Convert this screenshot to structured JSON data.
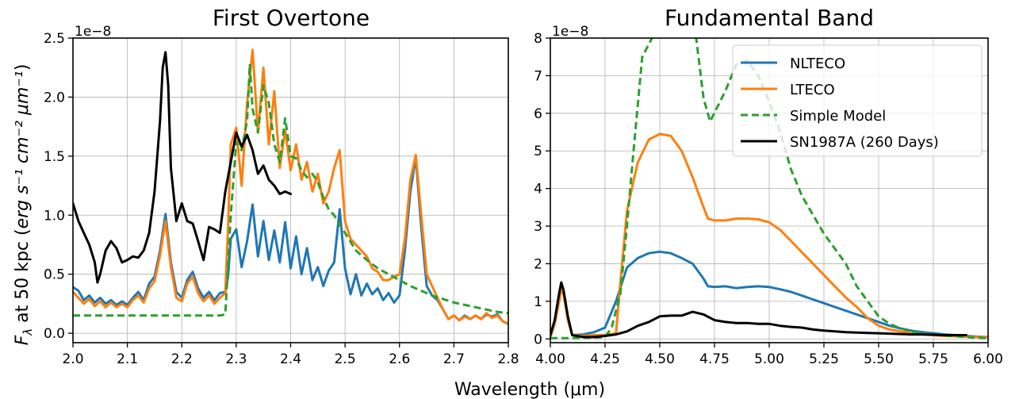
{
  "figure": {
    "xlabel": "Wavelength (μm)",
    "ylabel_pre": "F",
    "ylabel_sub": "λ",
    "ylabel_mid": " at 50 kpc (",
    "ylabel_unit": "erg s⁻¹ cm⁻² μm⁻¹",
    "ylabel_post": ")"
  },
  "colors": {
    "NLTECO": "#1f77b4",
    "LTECO": "#ff7f0e",
    "Simple Model": "#2ca02c",
    "SN1987A (260 Days)": "#000000"
  },
  "chart_data": [
    {
      "type": "line",
      "title": "First Overtone",
      "xlabel": "Wavelength (μm)",
      "ylabel": "Fλ at 50 kpc (erg s⁻¹ cm⁻² μm⁻¹)",
      "y_offset_label": "1e−8",
      "xlim": [
        2.0,
        2.8
      ],
      "ylim": [
        -0.08,
        2.5
      ],
      "xticks": [
        "2.0",
        "2.1",
        "2.2",
        "2.3",
        "2.4",
        "2.5",
        "2.6",
        "2.7",
        "2.8"
      ],
      "yticks": [
        "0.0",
        "0.5",
        "1.0",
        "1.5",
        "2.0",
        "2.5"
      ],
      "grid": true,
      "legend": false,
      "series": [
        {
          "name": "NLTECO",
          "style": "solid",
          "x": [
            2.0,
            2.01,
            2.02,
            2.03,
            2.04,
            2.05,
            2.06,
            2.07,
            2.08,
            2.09,
            2.1,
            2.11,
            2.12,
            2.13,
            2.14,
            2.15,
            2.16,
            2.17,
            2.18,
            2.19,
            2.2,
            2.21,
            2.22,
            2.23,
            2.24,
            2.25,
            2.26,
            2.27,
            2.28,
            2.285,
            2.29,
            2.3,
            2.31,
            2.32,
            2.33,
            2.34,
            2.35,
            2.36,
            2.37,
            2.38,
            2.39,
            2.4,
            2.41,
            2.42,
            2.43,
            2.44,
            2.45,
            2.46,
            2.47,
            2.48,
            2.49,
            2.5,
            2.51,
            2.52,
            2.53,
            2.54,
            2.55,
            2.56,
            2.57,
            2.58,
            2.59,
            2.6,
            2.61,
            2.62,
            2.63,
            2.64,
            2.65,
            2.66,
            2.67,
            2.68,
            2.69,
            2.7,
            2.71,
            2.72,
            2.73,
            2.74,
            2.75,
            2.76,
            2.77,
            2.78,
            2.79,
            2.8
          ],
          "y": [
            0.39,
            0.36,
            0.28,
            0.32,
            0.26,
            0.3,
            0.25,
            0.28,
            0.24,
            0.27,
            0.24,
            0.3,
            0.35,
            0.28,
            0.42,
            0.48,
            0.7,
            1.01,
            0.6,
            0.35,
            0.3,
            0.45,
            0.52,
            0.38,
            0.3,
            0.35,
            0.28,
            0.34,
            0.35,
            0.48,
            0.8,
            0.88,
            0.56,
            0.78,
            1.09,
            0.65,
            0.95,
            0.62,
            0.87,
            0.6,
            0.94,
            0.55,
            0.82,
            0.5,
            0.72,
            0.45,
            0.56,
            0.4,
            0.53,
            0.6,
            1.05,
            0.55,
            0.33,
            0.5,
            0.32,
            0.42,
            0.33,
            0.38,
            0.28,
            0.34,
            0.26,
            0.32,
            0.7,
            1.2,
            1.49,
            0.9,
            0.4,
            0.32,
            0.28,
            0.2,
            0.12,
            0.15,
            0.11,
            0.15,
            0.12,
            0.15,
            0.12,
            0.16,
            0.14,
            0.16,
            0.1,
            0.08
          ]
        },
        {
          "name": "LTECO",
          "style": "solid",
          "x": [
            2.0,
            2.01,
            2.02,
            2.03,
            2.04,
            2.05,
            2.06,
            2.07,
            2.08,
            2.09,
            2.1,
            2.11,
            2.12,
            2.13,
            2.14,
            2.15,
            2.16,
            2.17,
            2.18,
            2.19,
            2.2,
            2.21,
            2.22,
            2.23,
            2.24,
            2.25,
            2.26,
            2.27,
            2.28,
            2.285,
            2.29,
            2.3,
            2.31,
            2.32,
            2.33,
            2.34,
            2.35,
            2.36,
            2.37,
            2.38,
            2.39,
            2.4,
            2.41,
            2.42,
            2.43,
            2.44,
            2.45,
            2.46,
            2.47,
            2.48,
            2.49,
            2.5,
            2.51,
            2.52,
            2.53,
            2.54,
            2.55,
            2.56,
            2.57,
            2.58,
            2.59,
            2.6,
            2.61,
            2.62,
            2.63,
            2.64,
            2.65,
            2.66,
            2.67,
            2.68,
            2.69,
            2.7,
            2.71,
            2.72,
            2.73,
            2.74,
            2.75,
            2.76,
            2.77,
            2.78,
            2.79,
            2.8
          ],
          "y": [
            0.35,
            0.3,
            0.25,
            0.29,
            0.23,
            0.27,
            0.22,
            0.26,
            0.22,
            0.25,
            0.22,
            0.28,
            0.32,
            0.26,
            0.38,
            0.44,
            0.66,
            0.95,
            0.56,
            0.3,
            0.27,
            0.42,
            0.48,
            0.34,
            0.27,
            0.32,
            0.25,
            0.3,
            0.34,
            0.9,
            1.6,
            1.74,
            1.25,
            1.95,
            2.4,
            1.7,
            2.25,
            1.6,
            2.05,
            1.4,
            1.72,
            1.38,
            1.6,
            1.3,
            1.45,
            1.2,
            1.35,
            1.1,
            1.2,
            1.4,
            1.55,
            0.95,
            0.8,
            0.75,
            0.7,
            0.65,
            0.55,
            0.52,
            0.45,
            0.45,
            0.48,
            0.5,
            0.8,
            1.3,
            1.51,
            1.0,
            0.5,
            0.4,
            0.3,
            0.2,
            0.12,
            0.15,
            0.11,
            0.14,
            0.12,
            0.15,
            0.12,
            0.17,
            0.13,
            0.15,
            0.1,
            0.08
          ]
        },
        {
          "name": "Simple Model",
          "style": "dashed",
          "x": [
            2.0,
            2.05,
            2.1,
            2.15,
            2.2,
            2.25,
            2.27,
            2.28,
            2.29,
            2.3,
            2.31,
            2.32,
            2.325,
            2.33,
            2.34,
            2.35,
            2.36,
            2.37,
            2.38,
            2.39,
            2.4,
            2.41,
            2.42,
            2.43,
            2.44,
            2.45,
            2.46,
            2.47,
            2.48,
            2.49,
            2.5,
            2.52,
            2.54,
            2.56,
            2.58,
            2.6,
            2.62,
            2.64,
            2.66,
            2.68,
            2.7,
            2.72,
            2.74,
            2.76,
            2.78,
            2.8
          ],
          "y": [
            0.15,
            0.15,
            0.15,
            0.15,
            0.15,
            0.15,
            0.15,
            0.16,
            1.0,
            1.62,
            1.55,
            1.8,
            2.28,
            1.9,
            1.7,
            2.1,
            1.95,
            1.6,
            1.45,
            1.82,
            1.5,
            1.48,
            1.38,
            1.32,
            1.35,
            1.28,
            1.15,
            1.05,
            1.0,
            0.92,
            0.85,
            0.7,
            0.62,
            0.55,
            0.5,
            0.45,
            0.4,
            0.36,
            0.32,
            0.29,
            0.26,
            0.24,
            0.22,
            0.2,
            0.18,
            0.17
          ]
        },
        {
          "name": "SN1987A (260 Days)",
          "style": "solid",
          "x": [
            2.0,
            2.01,
            2.02,
            2.03,
            2.04,
            2.045,
            2.05,
            2.06,
            2.07,
            2.08,
            2.09,
            2.1,
            2.11,
            2.12,
            2.13,
            2.14,
            2.15,
            2.16,
            2.165,
            2.17,
            2.175,
            2.18,
            2.19,
            2.2,
            2.21,
            2.22,
            2.23,
            2.24,
            2.25,
            2.26,
            2.27,
            2.28,
            2.29,
            2.3,
            2.31,
            2.32,
            2.33,
            2.34,
            2.35,
            2.36,
            2.37,
            2.38,
            2.39,
            2.4
          ],
          "y": [
            1.1,
            0.95,
            0.85,
            0.75,
            0.6,
            0.43,
            0.5,
            0.7,
            0.78,
            0.72,
            0.6,
            0.62,
            0.65,
            0.64,
            0.7,
            0.85,
            1.2,
            1.8,
            2.25,
            2.38,
            2.1,
            1.4,
            0.95,
            1.1,
            0.95,
            0.93,
            0.78,
            0.62,
            0.9,
            0.88,
            0.85,
            1.2,
            1.45,
            1.7,
            1.58,
            1.68,
            1.55,
            1.35,
            1.42,
            1.3,
            1.25,
            1.18,
            1.2,
            1.18
          ]
        }
      ]
    },
    {
      "type": "line",
      "title": "Fundamental Band",
      "y_offset_label": "1e−8",
      "xlim": [
        4.0,
        6.0
      ],
      "ylim": [
        -0.1,
        8
      ],
      "xticks": [
        "4.00",
        "4.25",
        "4.50",
        "4.75",
        "5.00",
        "5.25",
        "5.50",
        "5.75",
        "6.00"
      ],
      "yticks": [
        "0",
        "1",
        "2",
        "3",
        "4",
        "5",
        "6",
        "7",
        "8"
      ],
      "grid": true,
      "legend": "top-right",
      "series": [
        {
          "name": "NLTECO",
          "style": "solid",
          "x": [
            4.0,
            4.02,
            4.04,
            4.05,
            4.06,
            4.08,
            4.1,
            4.15,
            4.2,
            4.25,
            4.3,
            4.35,
            4.4,
            4.45,
            4.5,
            4.55,
            4.6,
            4.65,
            4.7,
            4.72,
            4.75,
            4.8,
            4.85,
            4.9,
            4.95,
            5.0,
            5.05,
            5.1,
            5.15,
            5.2,
            5.25,
            5.3,
            5.35,
            5.4,
            5.45,
            5.5,
            5.55,
            5.6,
            5.65,
            5.7,
            5.75,
            5.8,
            5.85,
            5.9,
            5.95,
            6.0
          ],
          "y": [
            0.05,
            0.4,
            1.0,
            1.3,
            1.2,
            0.5,
            0.1,
            0.12,
            0.18,
            0.3,
            1.0,
            1.9,
            2.15,
            2.28,
            2.32,
            2.28,
            2.15,
            2.0,
            1.6,
            1.4,
            1.38,
            1.4,
            1.35,
            1.38,
            1.4,
            1.38,
            1.32,
            1.25,
            1.15,
            1.05,
            0.95,
            0.85,
            0.75,
            0.65,
            0.55,
            0.45,
            0.35,
            0.28,
            0.22,
            0.18,
            0.15,
            0.12,
            0.1,
            0.08,
            0.06,
            0.05
          ]
        },
        {
          "name": "LTECO",
          "style": "solid",
          "x": [
            4.0,
            4.02,
            4.04,
            4.05,
            4.06,
            4.08,
            4.1,
            4.15,
            4.2,
            4.25,
            4.3,
            4.32,
            4.35,
            4.38,
            4.4,
            4.45,
            4.5,
            4.55,
            4.6,
            4.65,
            4.7,
            4.72,
            4.75,
            4.8,
            4.85,
            4.9,
            4.95,
            5.0,
            5.05,
            5.1,
            5.15,
            5.2,
            5.25,
            5.3,
            5.35,
            5.4,
            5.45,
            5.5,
            5.55,
            5.6,
            5.65,
            5.7,
            5.75,
            5.8,
            5.85,
            5.9,
            5.95,
            6.0
          ],
          "y": [
            0.05,
            0.4,
            1.0,
            1.35,
            1.2,
            0.5,
            0.1,
            0.08,
            0.1,
            0.1,
            0.15,
            1.5,
            3.4,
            4.2,
            4.7,
            5.3,
            5.45,
            5.4,
            5.0,
            4.3,
            3.5,
            3.2,
            3.15,
            3.15,
            3.2,
            3.2,
            3.18,
            3.1,
            2.9,
            2.6,
            2.3,
            2.0,
            1.7,
            1.4,
            1.1,
            0.85,
            0.55,
            0.35,
            0.25,
            0.2,
            0.15,
            0.12,
            0.1,
            0.08,
            0.07,
            0.06,
            0.05,
            0.05
          ]
        },
        {
          "name": "Simple Model",
          "style": "dashed",
          "x": [
            4.0,
            4.1,
            4.2,
            4.25,
            4.28,
            4.32,
            4.35,
            4.38,
            4.42,
            4.5,
            4.6,
            4.66,
            4.7,
            4.73,
            4.8,
            4.85,
            4.9,
            4.95,
            5.0,
            5.05,
            5.1,
            5.15,
            5.2,
            5.25,
            5.3,
            5.35,
            5.4,
            5.45,
            5.5,
            5.55,
            5.6,
            5.65,
            5.7,
            5.75,
            5.8,
            5.85,
            5.9,
            5.95,
            6.0
          ],
          "y": [
            0.02,
            0.02,
            0.03,
            0.05,
            0.3,
            1.2,
            3.0,
            5.0,
            7.5,
            8.4,
            8.4,
            8.3,
            6.4,
            5.78,
            6.6,
            7.3,
            7.4,
            7.0,
            6.3,
            5.5,
            4.5,
            3.8,
            3.3,
            2.8,
            2.4,
            2.0,
            1.4,
            1.0,
            0.6,
            0.4,
            0.28,
            0.2,
            0.15,
            0.12,
            0.09,
            0.07,
            0.05,
            0.03,
            0.02
          ]
        },
        {
          "name": "SN1987A (260 Days)",
          "style": "solid",
          "x": [
            4.0,
            4.02,
            4.04,
            4.05,
            4.06,
            4.08,
            4.1,
            4.15,
            4.2,
            4.25,
            4.3,
            4.35,
            4.4,
            4.45,
            4.5,
            4.55,
            4.6,
            4.65,
            4.7,
            4.75,
            4.8,
            4.85,
            4.9,
            4.95,
            5.0,
            5.05,
            5.1,
            5.15,
            5.2,
            5.25,
            5.3,
            5.35,
            5.4,
            5.45,
            5.5,
            5.55,
            5.6,
            5.65,
            5.7,
            5.75,
            5.8,
            5.85,
            5.9
          ],
          "y": [
            0.1,
            0.5,
            1.2,
            1.5,
            1.3,
            0.6,
            0.1,
            0.05,
            0.05,
            0.08,
            0.12,
            0.2,
            0.35,
            0.45,
            0.6,
            0.62,
            0.62,
            0.72,
            0.65,
            0.5,
            0.45,
            0.42,
            0.42,
            0.4,
            0.4,
            0.35,
            0.32,
            0.3,
            0.25,
            0.22,
            0.2,
            0.18,
            0.17,
            0.16,
            0.15,
            0.14,
            0.13,
            0.12,
            0.12,
            0.11,
            0.1,
            0.1,
            0.1
          ]
        }
      ]
    }
  ]
}
